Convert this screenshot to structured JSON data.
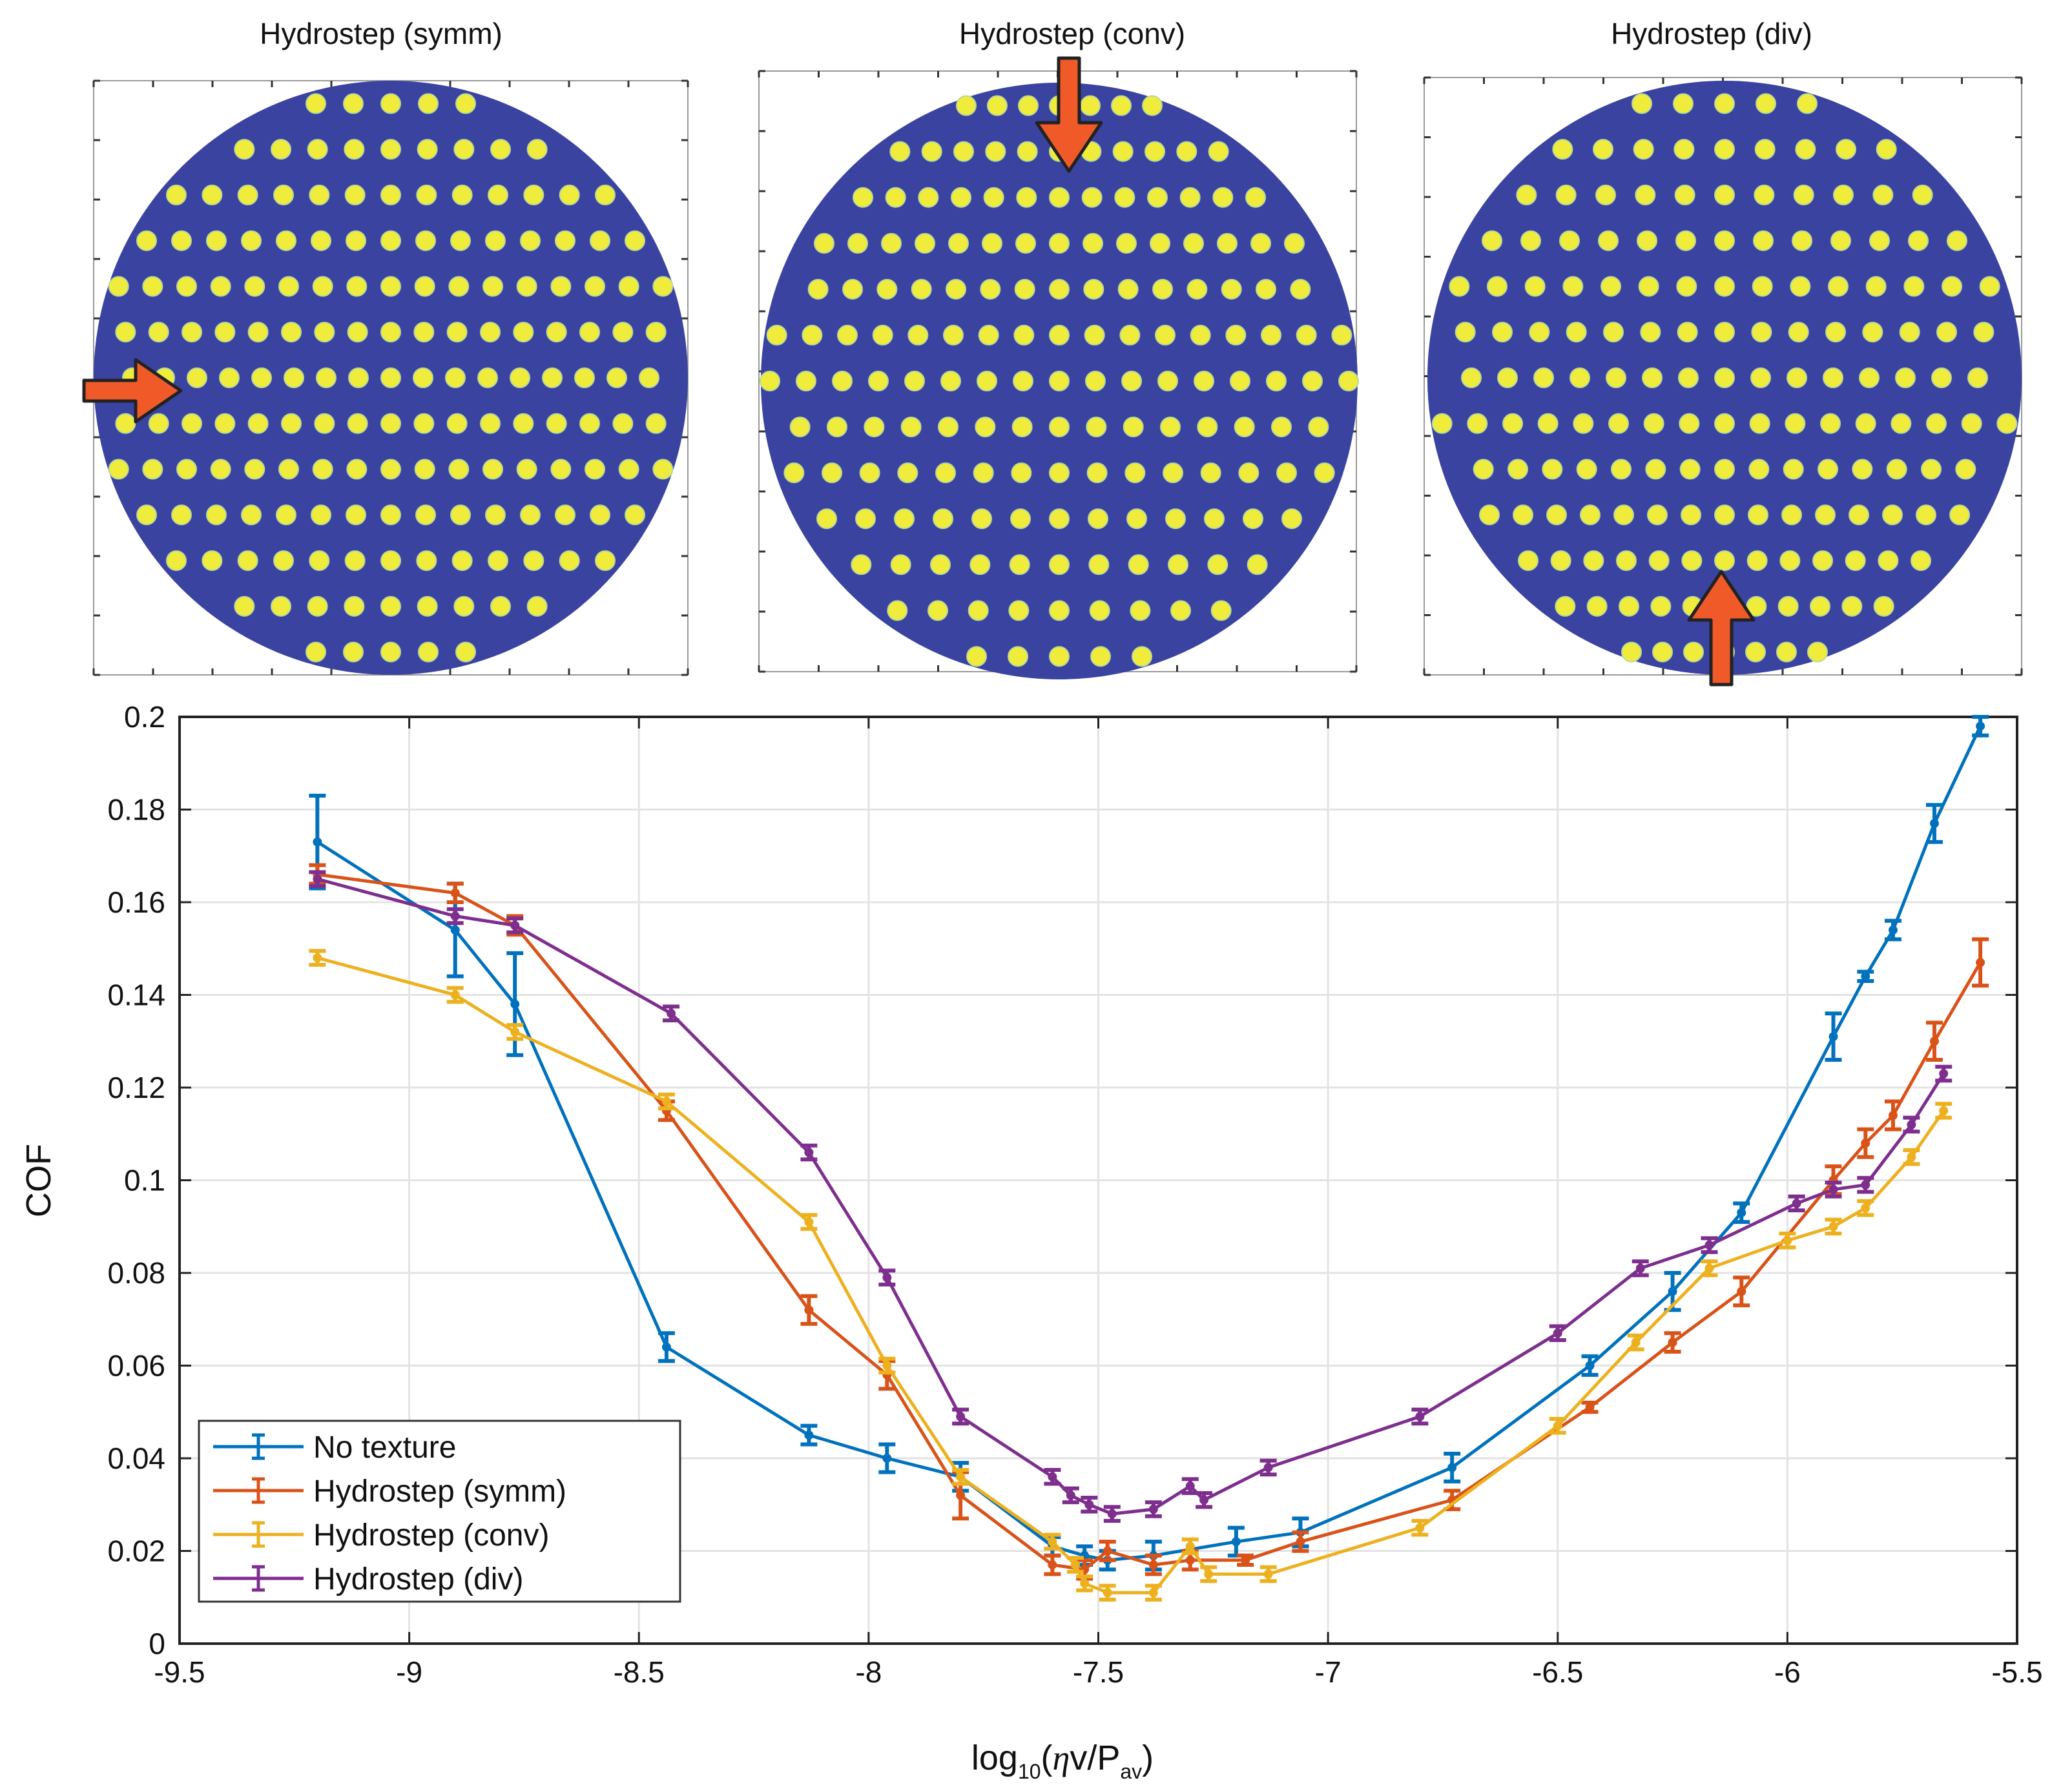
{
  "panels": [
    {
      "title": "Hydrostep (symm)",
      "arrow": "right"
    },
    {
      "title": "Hydrostep (conv)",
      "arrow": "down"
    },
    {
      "title": "Hydrostep (div)",
      "arrow": "up"
    }
  ],
  "colors": {
    "disc": "#3a44a0",
    "dimple": "#f0ec3c",
    "arrow": "#f05a28",
    "arrow_outline": "#222222"
  },
  "chart_data": {
    "type": "line",
    "title": "",
    "xlabel": "log10(ηv/Pav)",
    "ylabel": "COF",
    "xlim": [
      -9.5,
      -5.5
    ],
    "ylim": [
      0,
      0.2
    ],
    "xticks": [
      -9.5,
      -9,
      -8.5,
      -8,
      -7.5,
      -7,
      -6.5,
      -6,
      -5.5
    ],
    "xtick_labels": [
      "-9.5",
      "-9",
      "-8.5",
      "-8",
      "-7.5",
      "-7",
      "-6.5",
      "-6",
      "-5.5"
    ],
    "yticks": [
      0,
      0.02,
      0.04,
      0.06,
      0.08,
      0.1,
      0.12,
      0.14,
      0.16,
      0.18,
      0.2
    ],
    "ytick_labels": [
      "0",
      "0.02",
      "0.04",
      "0.06",
      "0.08",
      "0.1",
      "0.12",
      "0.14",
      "0.16",
      "0.18",
      "0.2"
    ],
    "grid": true,
    "legend_position": "bottom-left",
    "series": [
      {
        "name": "No texture",
        "color": "#0072bd",
        "x": [
          -9.2,
          -8.9,
          -8.77,
          -8.44,
          -8.13,
          -7.96,
          -7.8,
          -7.6,
          -7.53,
          -7.48,
          -7.38,
          -7.2,
          -7.06,
          -6.73,
          -6.43,
          -6.25,
          -6.1,
          -5.9,
          -5.83,
          -5.77,
          -5.68,
          -5.58
        ],
        "y": [
          0.173,
          0.154,
          0.138,
          0.064,
          0.045,
          0.04,
          0.036,
          0.021,
          0.019,
          0.018,
          0.019,
          0.022,
          0.024,
          0.038,
          0.06,
          0.076,
          0.093,
          0.131,
          0.144,
          0.154,
          0.177,
          0.198
        ],
        "err": [
          0.01,
          0.01,
          0.011,
          0.003,
          0.002,
          0.003,
          0.003,
          0.002,
          0.002,
          0.002,
          0.003,
          0.003,
          0.003,
          0.003,
          0.002,
          0.004,
          0.002,
          0.005,
          0.001,
          0.002,
          0.004,
          0.002
        ]
      },
      {
        "name": "Hydrostep (symm)",
        "color": "#d95319",
        "x": [
          -9.2,
          -8.9,
          -8.77,
          -8.44,
          -8.13,
          -7.96,
          -7.8,
          -7.6,
          -7.53,
          -7.48,
          -7.38,
          -7.3,
          -7.18,
          -7.06,
          -6.73,
          -6.43,
          -6.25,
          -6.1,
          -5.9,
          -5.83,
          -5.77,
          -5.68,
          -5.58
        ],
        "y": [
          0.166,
          0.162,
          0.155,
          0.115,
          0.072,
          0.058,
          0.032,
          0.017,
          0.016,
          0.02,
          0.017,
          0.018,
          0.018,
          0.022,
          0.031,
          0.051,
          0.065,
          0.076,
          0.1,
          0.108,
          0.114,
          0.13,
          0.147
        ],
        "err": [
          0.002,
          0.002,
          0.002,
          0.002,
          0.003,
          0.003,
          0.005,
          0.002,
          0.002,
          0.002,
          0.002,
          0.002,
          0.001,
          0.002,
          0.002,
          0.001,
          0.002,
          0.003,
          0.003,
          0.003,
          0.003,
          0.004,
          0.005
        ]
      },
      {
        "name": "Hydrostep (conv)",
        "color": "#edb120",
        "x": [
          -9.2,
          -8.9,
          -8.77,
          -8.44,
          -8.13,
          -7.96,
          -7.8,
          -7.6,
          -7.55,
          -7.53,
          -7.48,
          -7.38,
          -7.3,
          -7.26,
          -7.13,
          -6.8,
          -6.5,
          -6.33,
          -6.17,
          -6.0,
          -5.9,
          -5.83,
          -5.73,
          -5.66
        ],
        "y": [
          0.148,
          0.14,
          0.132,
          0.117,
          0.091,
          0.06,
          0.036,
          0.022,
          0.017,
          0.013,
          0.011,
          0.011,
          0.021,
          0.015,
          0.015,
          0.025,
          0.047,
          0.065,
          0.081,
          0.087,
          0.09,
          0.094,
          0.105,
          0.115
        ]
      },
      {
        "name": "Hydrostep (div)",
        "color": "#7e2f8e",
        "x": [
          -9.2,
          -8.9,
          -8.77,
          -8.43,
          -8.13,
          -7.96,
          -7.8,
          -7.6,
          -7.56,
          -7.52,
          -7.47,
          -7.38,
          -7.3,
          -7.27,
          -7.13,
          -6.8,
          -6.5,
          -6.32,
          -6.17,
          -5.98,
          -5.9,
          -5.83,
          -5.73,
          -5.66
        ],
        "y": [
          0.165,
          0.157,
          0.155,
          0.136,
          0.106,
          0.079,
          0.049,
          0.036,
          0.032,
          0.03,
          0.028,
          0.029,
          0.034,
          0.031,
          0.038,
          0.049,
          0.067,
          0.081,
          0.086,
          0.095,
          0.098,
          0.099,
          0.112,
          0.123
        ]
      }
    ]
  }
}
